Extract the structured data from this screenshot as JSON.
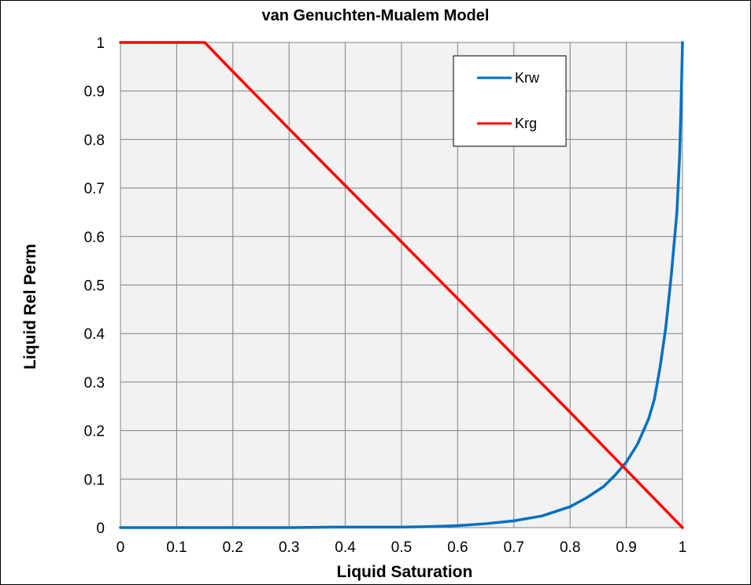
{
  "chart_data": {
    "type": "line",
    "title": "van Genuchten-Mualem  Model",
    "xlabel": "Liquid Saturation",
    "ylabel": "Liquid Rel Perm",
    "xlim": [
      0,
      1
    ],
    "ylim": [
      0,
      1
    ],
    "x_ticks": [
      "0",
      "0.1",
      "0.2",
      "0.3",
      "0.4",
      "0.5",
      "0.6",
      "0.7",
      "0.8",
      "0.9",
      "1"
    ],
    "y_ticks": [
      "0",
      "0.1",
      "0.2",
      "0.3",
      "0.4",
      "0.5",
      "0.6",
      "0.7",
      "0.8",
      "0.9",
      "1"
    ],
    "grid": true,
    "legend_position": "top-right",
    "plot_background": "#f2f2f2",
    "series": [
      {
        "name": "Krw",
        "color": "#0070c0",
        "x": [
          0,
          0.3,
          0.38,
          0.5,
          0.55,
          0.6,
          0.65,
          0.7,
          0.75,
          0.8,
          0.83,
          0.86,
          0.88,
          0.9,
          0.92,
          0.94,
          0.95,
          0.96,
          0.97,
          0.98,
          0.99,
          0.995,
          0.998,
          1.0
        ],
        "y": [
          0,
          0,
          0.001,
          0.001,
          0.002,
          0.004,
          0.008,
          0.014,
          0.024,
          0.043,
          0.062,
          0.085,
          0.108,
          0.135,
          0.172,
          0.225,
          0.265,
          0.33,
          0.41,
          0.52,
          0.65,
          0.77,
          0.9,
          1.0
        ]
      },
      {
        "name": "Krg",
        "color": "#ff0000",
        "x": [
          0,
          0.15,
          0.2,
          0.3,
          0.4,
          0.5,
          0.6,
          0.7,
          0.8,
          0.9,
          1.0
        ],
        "y": [
          1.0,
          1.0,
          0.94,
          0.822,
          0.705,
          0.589,
          0.472,
          0.355,
          0.238,
          0.119,
          0.0
        ]
      }
    ]
  }
}
